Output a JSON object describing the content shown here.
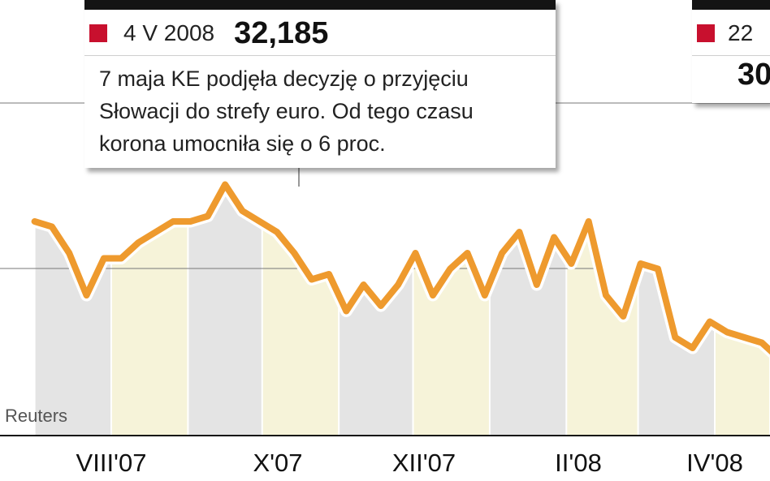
{
  "chart_data": {
    "type": "line",
    "x_tick_labels": [
      "VIII'07",
      "X'07",
      "XII'07",
      "II'08",
      "IV'08"
    ],
    "series": [
      {
        "x": [
          "2007-07-01",
          "2007-07-08",
          "2007-07-15",
          "2007-07-22",
          "2007-07-29",
          "2007-08-05",
          "2007-08-12",
          "2007-08-19",
          "2007-08-26",
          "2007-09-02",
          "2007-09-09",
          "2007-09-16",
          "2007-09-23",
          "2007-09-30",
          "2007-10-07",
          "2007-10-14",
          "2007-10-21",
          "2007-10-28",
          "2007-11-04",
          "2007-11-11",
          "2007-11-18",
          "2007-11-25",
          "2007-12-02",
          "2007-12-09",
          "2007-12-16",
          "2007-12-23",
          "2007-12-30",
          "2008-01-06",
          "2008-01-13",
          "2008-01-20",
          "2008-01-27",
          "2008-02-03",
          "2008-02-10",
          "2008-02-17",
          "2008-02-24",
          "2008-03-02",
          "2008-03-09",
          "2008-03-16",
          "2008-03-23",
          "2008-03-30",
          "2008-04-06",
          "2008-04-13",
          "2008-04-20",
          "2008-04-27",
          "2008-05-04"
        ],
        "values": [
          33.9,
          33.85,
          33.6,
          33.2,
          33.55,
          33.55,
          33.7,
          33.8,
          33.9,
          33.9,
          33.95,
          34.25,
          34.0,
          33.9,
          33.8,
          33.6,
          33.35,
          33.4,
          33.05,
          33.3,
          33.1,
          33.3,
          33.6,
          33.2,
          33.45,
          33.6,
          33.2,
          33.6,
          33.8,
          33.3,
          33.75,
          33.5,
          33.9,
          33.2,
          33.0,
          33.5,
          33.45,
          32.8,
          32.7,
          32.95,
          32.85,
          32.8,
          32.75,
          32.6,
          32.185
        ]
      }
    ],
    "annotations": [
      {
        "date": "4 V 2008",
        "value": "32,185",
        "text_lines": [
          "7 maja KE podjęła decyzję o przyjęciu",
          "Słowacji do strefy euro. Od tego czasu",
          "korona umocniła się o 6 proc."
        ]
      },
      {
        "date": "22",
        "value": "30"
      }
    ],
    "source": "Reuters",
    "colors": {
      "line": "#ee9a2e",
      "band_gray": "#e4e4e4",
      "band_yellow": "#f6f3d9",
      "marker": "#c8102e"
    },
    "grid": true
  }
}
